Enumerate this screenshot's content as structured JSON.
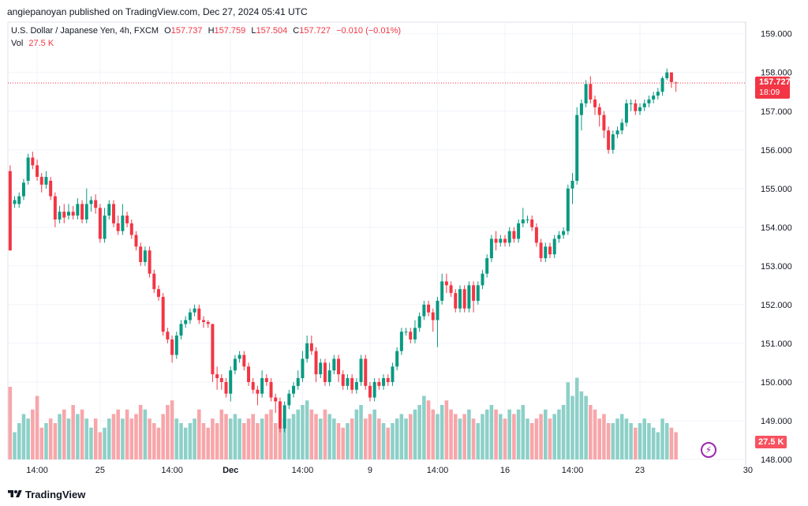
{
  "header": {
    "publisher": "angiepanoyan published on TradingView.com, Dec 27, 2024 05:41 UTC"
  },
  "legend": {
    "symbol": "U.S. Dollar / Japanese Yen, 4h, FXCM",
    "o_label": "O",
    "o_value": "157.737",
    "h_label": "H",
    "h_value": "157.759",
    "l_label": "L",
    "l_value": "157.504",
    "c_label": "C",
    "c_value": "157.727",
    "change": "−0.010 (−0.01%)",
    "vol_label": "Vol",
    "vol_value": "27.5 K"
  },
  "last_price": {
    "price": "157.727",
    "countdown": "18:09"
  },
  "volume_tag": "27.5 K",
  "footer": {
    "brand": "TradingView"
  },
  "colors": {
    "up": "#089981",
    "down": "#f23645",
    "up_volume": "#8dd0c8",
    "down_volume": "#f7a6aa"
  },
  "chart_data": {
    "type": "candlestick",
    "interval": "4h",
    "ylim": [
      148.0,
      159.3
    ],
    "y_ticks": [
      "159.000",
      "158.000",
      "157.000",
      "156.000",
      "155.000",
      "154.000",
      "153.000",
      "152.000",
      "151.000",
      "150.000",
      "149.000",
      "148.000"
    ],
    "x_ticks": [
      {
        "label": "14:00",
        "i": 6
      },
      {
        "label": "25",
        "i": 20
      },
      {
        "label": "14:00",
        "i": 36
      },
      {
        "label": "Dec",
        "i": 49
      },
      {
        "label": "14:00",
        "i": 65
      },
      {
        "label": "9",
        "i": 80
      },
      {
        "label": "14:00",
        "i": 95
      },
      {
        "label": "16",
        "i": 110
      },
      {
        "label": "14:00",
        "i": 125
      },
      {
        "label": "23",
        "i": 140
      },
      {
        "label": "30",
        "i": 164
      }
    ],
    "bar_slots": 164,
    "candles": [
      [
        155.45,
        153.4,
        155.6,
        153.4,
        80
      ],
      [
        154.6,
        154.7,
        154.8,
        154.5,
        30
      ],
      [
        154.6,
        154.8,
        154.9,
        154.5,
        40
      ],
      [
        154.8,
        155.15,
        155.25,
        154.7,
        50
      ],
      [
        155.2,
        155.8,
        155.9,
        155.1,
        45
      ],
      [
        155.8,
        155.6,
        155.95,
        155.5,
        55
      ],
      [
        155.6,
        155.3,
        155.75,
        155.2,
        70
      ],
      [
        155.3,
        155.1,
        155.4,
        154.9,
        35
      ],
      [
        155.1,
        155.3,
        155.45,
        155.0,
        40
      ],
      [
        155.2,
        154.8,
        155.3,
        154.7,
        45
      ],
      [
        154.8,
        154.2,
        154.9,
        154.0,
        40
      ],
      [
        154.2,
        154.4,
        154.55,
        154.1,
        50
      ],
      [
        154.4,
        154.25,
        154.6,
        154.1,
        55
      ],
      [
        154.3,
        154.4,
        154.6,
        154.2,
        45
      ],
      [
        154.4,
        154.3,
        154.55,
        154.2,
        60
      ],
      [
        154.3,
        154.6,
        154.75,
        154.2,
        50
      ],
      [
        154.6,
        154.2,
        154.7,
        154.1,
        55
      ],
      [
        154.2,
        154.6,
        155.0,
        154.1,
        45
      ],
      [
        154.6,
        154.7,
        154.8,
        154.4,
        35
      ],
      [
        154.7,
        154.5,
        154.85,
        154.35,
        45
      ],
      [
        154.5,
        153.7,
        154.6,
        153.6,
        30
      ],
      [
        153.7,
        154.3,
        154.5,
        153.6,
        35
      ],
      [
        154.3,
        154.6,
        154.7,
        154.2,
        45
      ],
      [
        154.6,
        154.1,
        154.7,
        154.0,
        50
      ],
      [
        154.1,
        153.9,
        154.3,
        153.8,
        55
      ],
      [
        153.9,
        154.3,
        154.6,
        153.8,
        45
      ],
      [
        154.3,
        154.1,
        154.4,
        154.0,
        55
      ],
      [
        154.1,
        153.8,
        154.2,
        153.7,
        45
      ],
      [
        153.8,
        153.5,
        153.9,
        153.4,
        50
      ],
      [
        153.5,
        153.1,
        153.6,
        153.0,
        60
      ],
      [
        153.1,
        153.4,
        153.5,
        153.0,
        55
      ],
      [
        153.4,
        152.8,
        153.5,
        152.7,
        45
      ],
      [
        152.8,
        152.4,
        152.9,
        152.3,
        40
      ],
      [
        152.4,
        152.2,
        152.5,
        152.1,
        35
      ],
      [
        152.2,
        151.3,
        152.3,
        151.2,
        50
      ],
      [
        151.3,
        151.1,
        151.4,
        151.0,
        60
      ],
      [
        151.1,
        150.7,
        151.2,
        150.5,
        65
      ],
      [
        150.7,
        151.2,
        151.3,
        150.6,
        45
      ],
      [
        151.2,
        151.5,
        151.6,
        151.1,
        40
      ],
      [
        151.5,
        151.6,
        151.7,
        151.4,
        35
      ],
      [
        151.6,
        151.8,
        151.9,
        151.5,
        40
      ],
      [
        151.8,
        151.9,
        152.0,
        151.7,
        45
      ],
      [
        151.9,
        151.6,
        152.0,
        151.5,
        55
      ],
      [
        151.6,
        151.55,
        151.7,
        151.4,
        40
      ],
      [
        151.55,
        151.5,
        151.6,
        151.4,
        35
      ],
      [
        151.5,
        150.2,
        151.5,
        150.0,
        45
      ],
      [
        150.2,
        150.1,
        150.4,
        149.8,
        40
      ],
      [
        150.1,
        150.0,
        150.2,
        149.8,
        55
      ],
      [
        150.0,
        149.7,
        150.1,
        149.6,
        50
      ],
      [
        149.7,
        150.3,
        150.4,
        149.5,
        45
      ],
      [
        150.3,
        150.6,
        150.7,
        150.2,
        50
      ],
      [
        150.6,
        150.7,
        150.8,
        150.5,
        45
      ],
      [
        150.7,
        150.4,
        150.8,
        150.3,
        40
      ],
      [
        150.4,
        150.0,
        150.5,
        149.9,
        45
      ],
      [
        150.0,
        149.8,
        150.1,
        149.7,
        50
      ],
      [
        149.8,
        149.7,
        149.9,
        149.4,
        40
      ],
      [
        149.7,
        150.1,
        150.3,
        149.6,
        45
      ],
      [
        150.1,
        150.0,
        150.2,
        149.9,
        50
      ],
      [
        150.0,
        149.6,
        150.1,
        149.5,
        55
      ],
      [
        149.6,
        149.5,
        149.7,
        149.2,
        40
      ],
      [
        149.5,
        148.8,
        149.6,
        148.7,
        35
      ],
      [
        148.8,
        149.4,
        149.5,
        148.7,
        45
      ],
      [
        149.4,
        149.7,
        149.8,
        149.3,
        45
      ],
      [
        149.7,
        149.9,
        150.0,
        149.6,
        50
      ],
      [
        149.9,
        150.1,
        150.3,
        149.8,
        55
      ],
      [
        150.1,
        150.6,
        150.8,
        150.0,
        60
      ],
      [
        150.6,
        151.0,
        151.2,
        150.5,
        65
      ],
      [
        151.0,
        150.8,
        151.2,
        150.7,
        55
      ],
      [
        150.8,
        150.2,
        150.9,
        150.0,
        50
      ],
      [
        150.2,
        150.5,
        150.6,
        150.1,
        45
      ],
      [
        150.5,
        150.0,
        150.6,
        149.9,
        55
      ],
      [
        150.0,
        150.3,
        150.5,
        149.9,
        50
      ],
      [
        150.3,
        150.6,
        150.7,
        150.2,
        45
      ],
      [
        150.6,
        150.2,
        150.7,
        150.0,
        40
      ],
      [
        150.2,
        149.9,
        150.3,
        149.8,
        35
      ],
      [
        149.9,
        150.1,
        150.2,
        149.8,
        40
      ],
      [
        150.1,
        149.8,
        150.2,
        149.7,
        45
      ],
      [
        149.8,
        150.0,
        150.1,
        149.7,
        55
      ],
      [
        150.0,
        150.6,
        150.7,
        149.9,
        60
      ],
      [
        150.6,
        149.9,
        150.7,
        149.8,
        45
      ],
      [
        149.9,
        149.6,
        150.0,
        149.5,
        50
      ],
      [
        149.6,
        150.0,
        150.1,
        149.5,
        55
      ],
      [
        150.0,
        149.9,
        150.1,
        149.8,
        45
      ],
      [
        149.9,
        150.1,
        150.2,
        149.8,
        40
      ],
      [
        150.1,
        150.0,
        150.2,
        149.9,
        35
      ],
      [
        150.0,
        150.4,
        150.5,
        149.9,
        40
      ],
      [
        150.4,
        150.8,
        150.9,
        150.3,
        45
      ],
      [
        150.8,
        151.3,
        151.4,
        150.7,
        50
      ],
      [
        151.3,
        151.3,
        151.4,
        151.2,
        45
      ],
      [
        151.3,
        151.1,
        151.4,
        151.0,
        50
      ],
      [
        151.1,
        151.4,
        151.6,
        151.0,
        55
      ],
      [
        151.4,
        151.7,
        151.8,
        151.3,
        60
      ],
      [
        151.7,
        152.0,
        152.1,
        151.6,
        70
      ],
      [
        152.0,
        151.8,
        152.1,
        151.7,
        65
      ],
      [
        151.8,
        151.6,
        151.9,
        151.3,
        55
      ],
      [
        151.6,
        152.1,
        152.2,
        150.9,
        50
      ],
      [
        152.1,
        152.6,
        152.8,
        152.0,
        60
      ],
      [
        152.6,
        152.5,
        152.8,
        152.3,
        65
      ],
      [
        152.5,
        152.3,
        152.6,
        152.2,
        55
      ],
      [
        152.3,
        151.9,
        152.4,
        151.8,
        50
      ],
      [
        151.9,
        152.4,
        152.5,
        151.8,
        45
      ],
      [
        152.4,
        151.9,
        152.5,
        151.8,
        50
      ],
      [
        151.9,
        152.5,
        152.6,
        151.8,
        55
      ],
      [
        152.5,
        152.1,
        152.6,
        151.8,
        45
      ],
      [
        152.1,
        152.5,
        152.6,
        152.0,
        40
      ],
      [
        152.5,
        152.8,
        152.9,
        152.4,
        50
      ],
      [
        152.8,
        153.2,
        153.3,
        152.7,
        55
      ],
      [
        153.2,
        153.7,
        153.8,
        153.1,
        60
      ],
      [
        153.7,
        153.6,
        153.9,
        153.4,
        55
      ],
      [
        153.6,
        153.7,
        153.8,
        153.5,
        50
      ],
      [
        153.7,
        153.6,
        153.8,
        153.5,
        45
      ],
      [
        153.6,
        153.9,
        154.0,
        153.5,
        55
      ],
      [
        153.9,
        153.7,
        154.0,
        153.6,
        50
      ],
      [
        153.7,
        154.1,
        154.2,
        153.6,
        55
      ],
      [
        154.1,
        154.2,
        154.5,
        154.0,
        60
      ],
      [
        154.2,
        154.2,
        154.3,
        154.1,
        45
      ],
      [
        154.2,
        154.0,
        154.3,
        153.9,
        40
      ],
      [
        154.0,
        153.6,
        154.1,
        153.5,
        45
      ],
      [
        153.6,
        153.2,
        153.7,
        153.1,
        50
      ],
      [
        153.2,
        153.5,
        153.6,
        153.1,
        55
      ],
      [
        153.5,
        153.3,
        153.6,
        153.2,
        45
      ],
      [
        153.3,
        153.7,
        153.8,
        153.2,
        50
      ],
      [
        153.7,
        153.8,
        153.9,
        153.6,
        55
      ],
      [
        153.8,
        153.9,
        154.0,
        153.7,
        60
      ],
      [
        153.9,
        155.0,
        155.1,
        153.8,
        85
      ],
      [
        155.0,
        155.2,
        155.4,
        154.6,
        70
      ],
      [
        155.2,
        156.9,
        157.1,
        155.1,
        90
      ],
      [
        156.9,
        157.2,
        157.3,
        156.5,
        75
      ],
      [
        157.2,
        157.7,
        157.8,
        157.1,
        70
      ],
      [
        157.7,
        157.3,
        157.9,
        157.2,
        60
      ],
      [
        157.3,
        157.1,
        157.4,
        156.9,
        55
      ],
      [
        157.1,
        156.9,
        157.2,
        156.6,
        45
      ],
      [
        156.9,
        156.5,
        157.0,
        156.3,
        50
      ],
      [
        156.5,
        156.0,
        156.6,
        155.9,
        40
      ],
      [
        156.0,
        156.4,
        156.5,
        155.9,
        40
      ],
      [
        156.4,
        156.5,
        156.6,
        156.3,
        45
      ],
      [
        156.5,
        156.7,
        156.8,
        156.4,
        50
      ],
      [
        156.7,
        157.2,
        157.3,
        156.6,
        45
      ],
      [
        157.2,
        157.2,
        157.3,
        157.0,
        40
      ],
      [
        157.2,
        157.0,
        157.3,
        156.9,
        35
      ],
      [
        157.0,
        157.1,
        157.2,
        156.9,
        40
      ],
      [
        157.1,
        157.2,
        157.3,
        157.0,
        45
      ],
      [
        157.2,
        157.3,
        157.4,
        157.1,
        40
      ],
      [
        157.3,
        157.4,
        157.5,
        157.2,
        35
      ],
      [
        157.4,
        157.5,
        157.6,
        157.3,
        30
      ],
      [
        157.5,
        157.85,
        157.9,
        157.4,
        45
      ],
      [
        157.85,
        158.0,
        158.1,
        157.8,
        40
      ],
      [
        158.0,
        157.75,
        158.0,
        157.6,
        35
      ],
      [
        157.74,
        157.73,
        157.76,
        157.5,
        30
      ]
    ]
  }
}
